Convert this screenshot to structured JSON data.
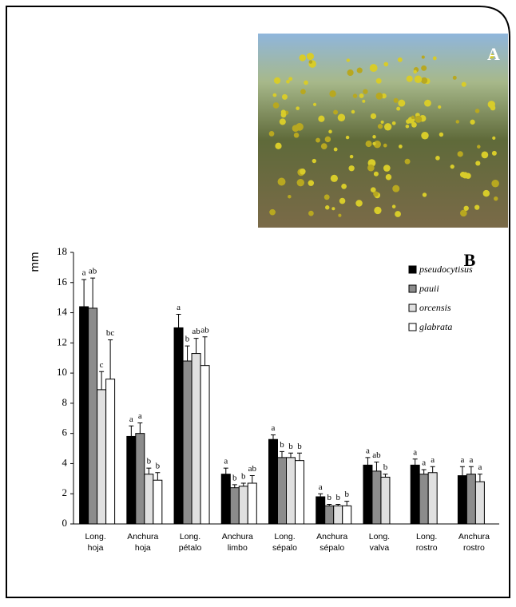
{
  "photo": {
    "label": "A"
  },
  "chart_data": {
    "type": "bar",
    "panel_label": "B",
    "y_label": "mm",
    "categories": [
      [
        "Long.",
        "hoja"
      ],
      [
        "Anchura",
        "hoja"
      ],
      [
        "Long.",
        "pétalo"
      ],
      [
        "Anchura",
        "limbo"
      ],
      [
        "Long.",
        "sépalo"
      ],
      [
        "Anchura",
        "sépalo"
      ],
      [
        "Long.",
        "valva"
      ],
      [
        "Long.",
        "rostro"
      ],
      [
        "Anchura",
        "rostro"
      ]
    ],
    "series": [
      {
        "name": "pseudocytisus",
        "color": "#000000",
        "values": [
          14.4,
          5.8,
          13.0,
          3.3,
          5.6,
          1.8,
          3.9,
          3.9,
          3.2
        ],
        "errors": [
          1.8,
          0.7,
          0.9,
          0.4,
          0.3,
          0.2,
          0.5,
          0.4,
          0.6
        ],
        "letters": [
          "a",
          "a",
          "a",
          "a",
          "a",
          "a",
          "a",
          "a",
          "a"
        ]
      },
      {
        "name": "pauii",
        "color": "#8c8c8c",
        "values": [
          14.3,
          6.0,
          10.8,
          2.4,
          4.4,
          1.2,
          3.5,
          3.3,
          3.3
        ],
        "errors": [
          2.0,
          0.7,
          1.0,
          0.2,
          0.4,
          0.1,
          0.6,
          0.3,
          0.5
        ],
        "letters": [
          "ab",
          "a",
          "b",
          "b",
          "b",
          "b",
          "ab",
          "a",
          "a"
        ]
      },
      {
        "name": "orcensis",
        "color": "#e0e0e0",
        "values": [
          8.9,
          3.3,
          11.3,
          2.5,
          4.4,
          1.2,
          3.1,
          3.4,
          2.8
        ],
        "errors": [
          1.2,
          0.4,
          1.0,
          0.2,
          0.3,
          0.1,
          0.2,
          0.4,
          0.5
        ],
        "letters": [
          "c",
          "b",
          "ab",
          "b",
          "b",
          "b",
          "b",
          "a",
          "a"
        ]
      },
      {
        "name": "glabrata",
        "color": "#ffffff",
        "values": [
          9.6,
          2.9,
          10.5,
          2.7,
          4.2,
          1.2,
          null,
          null,
          null
        ],
        "errors": [
          2.6,
          0.5,
          1.9,
          0.5,
          0.5,
          0.3,
          null,
          null,
          null
        ],
        "letters": [
          "bc",
          "b",
          "ab",
          "ab",
          "b",
          "b",
          null,
          null,
          null
        ]
      }
    ],
    "ylim": [
      0,
      18
    ],
    "yticks": [
      0,
      2,
      4,
      6,
      8,
      10,
      12,
      14,
      16,
      18
    ],
    "legend": "top-right"
  }
}
